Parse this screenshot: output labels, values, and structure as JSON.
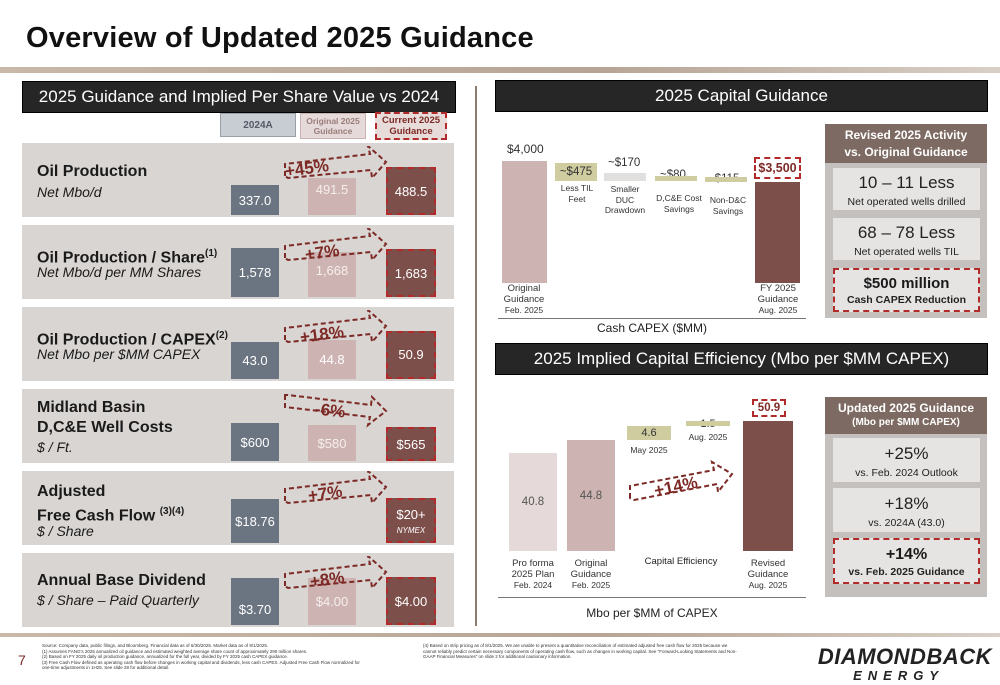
{
  "page": {
    "title": "Overview of Updated 2025 Guidance",
    "page_number": "7"
  },
  "left": {
    "header": "2025 Guidance and Implied Per Share Value vs 2024",
    "columns": {
      "c2024": "2024A",
      "orig": "Original 2025 Guidance",
      "cur": "Current 2025 Guidance"
    },
    "rows": [
      {
        "title": "Oil Production",
        "sub": "Net Mbo/d",
        "v2024": "337.0",
        "orig": "491.5",
        "cur": "488.5",
        "pct": "+45%"
      },
      {
        "title": "Oil Production / Share",
        "sup": "(1)",
        "sub": "Net Mbo/d per MM Shares",
        "v2024": "1,578",
        "orig": "1,668",
        "cur": "1,683",
        "pct": "+7%"
      },
      {
        "title": "Oil Production / CAPEX",
        "sup": "(2)",
        "sub": "Net Mbo per $MM CAPEX",
        "v2024": "43.0",
        "orig": "44.8",
        "cur": "50.9",
        "pct": "+18%"
      },
      {
        "title_l1": "Midland Basin",
        "title_l2": "D,C&E Well Costs",
        "sub": "$ / Ft.",
        "v2024": "$600",
        "orig": "$580",
        "cur": "$565",
        "pct": "-6%"
      },
      {
        "title_l1": "Adjusted",
        "title_l2": "Free Cash Flow ",
        "sup": "(3)(4)",
        "sub": "$ / Share",
        "v2024": "$18.76",
        "orig": "",
        "cur": "$20+",
        "cur_note": "NYMEX",
        "pct": "+7%"
      },
      {
        "title": "Annual Base Dividend",
        "sub": "$ / Share – Paid Quarterly",
        "v2024": "$3.70",
        "orig": "$4.00",
        "cur": "$4.00",
        "pct": "+8%"
      }
    ]
  },
  "capital": {
    "header": "2025 Capital Guidance",
    "axis_label": "Cash CAPEX ($MM)",
    "bars": [
      {
        "value": "$4,000",
        "label_l1": "Original",
        "label_l2": "Guidance",
        "label_l3": "Feb. 2025"
      },
      {
        "value": "~$475",
        "label_l1": "Less TIL",
        "label_l2": "Feet",
        "label_l3": ""
      },
      {
        "value": "~$170",
        "label_l1": "Smaller",
        "label_l2": "DUC",
        "label_l3": "Drawdown"
      },
      {
        "value": "~$80",
        "label_l1": "D,C&E Cost",
        "label_l2": "Savings",
        "label_l3": ""
      },
      {
        "value": "~$115",
        "label_l1": "Non-D&C",
        "label_l2": "Savings",
        "label_l3": ""
      },
      {
        "value": "$3,500",
        "label_l1": "FY 2025",
        "label_l2": "Guidance",
        "label_l3": "Aug. 2025"
      }
    ],
    "side": {
      "header_l1": "Revised 2025 Activity",
      "header_l2": "vs. Original Guidance",
      "items": [
        {
          "big": "10 – 11 Less",
          "small": "Net operated wells drilled"
        },
        {
          "big": "68 – 78 Less",
          "small": "Net operated wells TIL"
        },
        {
          "big": "$500 million",
          "small": "Cash CAPEX Reduction"
        }
      ]
    }
  },
  "efficiency": {
    "header": "2025 Implied Capital Efficiency (Mbo per $MM CAPEX)",
    "axis_label": "Mbo per $MM of CAPEX",
    "pct": "+14%",
    "bars": [
      {
        "value": "40.8",
        "label_l1": "Pro forma",
        "label_l2": "2025 Plan",
        "label_l3": "Feb. 2024"
      },
      {
        "value": "44.8",
        "label_l1": "Original",
        "label_l2": "Guidance",
        "label_l3": "Feb. 2025"
      },
      {
        "value": "4.6",
        "note": "May 2025"
      },
      {
        "value": "1.5",
        "note": "Aug. 2025"
      },
      {
        "value": "50.9",
        "label_l1": "Revised",
        "label_l2": "Guidance",
        "label_l3": "Aug. 2025"
      }
    ],
    "mid_label": "Capital Efficiency",
    "side": {
      "header_l1": "Updated 2025 Guidance",
      "header_l2": "(Mbo per $MM CAPEX)",
      "items": [
        {
          "big": "+25%",
          "small": "vs. Feb. 2024 Outlook"
        },
        {
          "big": "+18%",
          "small": "vs. 2024A (43.0)"
        },
        {
          "big": "+14%",
          "small": "vs. Feb. 2025 Guidance"
        }
      ]
    }
  },
  "footnotes": {
    "left": [
      "Source: Company data, public filings, and Bloomberg. Financial data as of 6/30/2025. Market data as of 8/1/2025.",
      "(1)        Assumes FANG's 2025 annualized oil guidance and estimated weighted average share count of approximately 290 million shares.",
      "(2)        Based on FY 2025 daily oil production guidance, annualized for the full year, divided by FY 2025 cash CAPEX guidance.",
      "(3)        Free Cash Flow defined as operating cash flow before changes in working capital and dividends, less cash CAPEX. Adjusted Free Cash Flow normalized for",
      "           one-time adjustments in 1H25. See slide 28 for additional detail."
    ],
    "right": [
      "(4)        Based on strip pricing as of 8/1/2025. We are unable to present a quantitative reconciliation of estimated adjusted free cash flow for 2025 because we",
      "           cannot reliably predict certain necessary components of operating cash flow, such as changes in working capital. See \"Forward-Looking Statements and Non-",
      "           GAAP Financial Measures\" on slide 2 for additional cautionary information."
    ]
  },
  "logo": {
    "line1": "DIAMONDBACK",
    "line2": "ENERGY"
  },
  "colors": {
    "dark_header": "#262626",
    "maroon": "#7d4f4b",
    "rose": "#cdb3b1",
    "slate": "#6b7481",
    "olive": "#cfcca0",
    "dash": "#b22a2a"
  }
}
